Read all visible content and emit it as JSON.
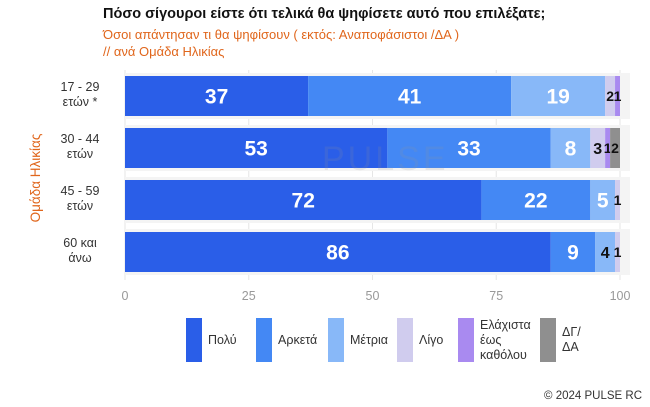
{
  "header": {
    "title": "Πόσο σίγουροι είστε ότι τελικά θα ψηφίσετε αυτό που επιλέξατε;",
    "subtitle": "Όσοι απάντησαν τι θα ψηφίσουν ( εκτός: Αναποφάσιστοι /ΔΑ )",
    "subtitle2": " // ανά Ομάδα Ηλικίας"
  },
  "watermark": "PULSE",
  "copyright": "© 2024 PULSE RC",
  "chart_data": {
    "type": "bar",
    "orientation": "horizontal",
    "stacked": true,
    "ylabel": "Ομάδα Ηλικίας",
    "categories": [
      "17 - 29\nετών *",
      "30 - 44\nετών",
      "45 - 59\nετών",
      "60 και\nάνω"
    ],
    "series": [
      {
        "name": "Πολύ",
        "color": "#2a5ee8",
        "values": [
          37,
          53,
          72,
          86
        ]
      },
      {
        "name": "Αρκετά",
        "color": "#4488f4",
        "values": [
          41,
          33,
          22,
          9
        ]
      },
      {
        "name": "Μέτρια",
        "color": "#88b8f8",
        "values": [
          19,
          8,
          5,
          4
        ]
      },
      {
        "name": "Λίγο",
        "color": "#d0ccee",
        "values": [
          2,
          3,
          1,
          1
        ]
      },
      {
        "name": "Ελάχιστα\nέως\nκαθόλου",
        "color": "#a98af0",
        "values": [
          1,
          1,
          0,
          0
        ]
      },
      {
        "name": "ΔΓ/\nΔΑ",
        "color": "#8f8f8f",
        "values": [
          0,
          2,
          0,
          0
        ]
      }
    ],
    "data_labels": [
      [
        "37",
        "41",
        "19",
        "2",
        "1",
        ""
      ],
      [
        "53",
        "33",
        "8",
        "3",
        "1",
        "2"
      ],
      [
        "72",
        "22",
        "5",
        "1",
        "",
        ""
      ],
      [
        "86",
        "9",
        "4",
        "1",
        "",
        ""
      ]
    ],
    "xlim": [
      0,
      100
    ],
    "xticks": [
      "0",
      "25",
      "50",
      "75",
      "100"
    ],
    "grid": true,
    "legend_position": "bottom"
  }
}
